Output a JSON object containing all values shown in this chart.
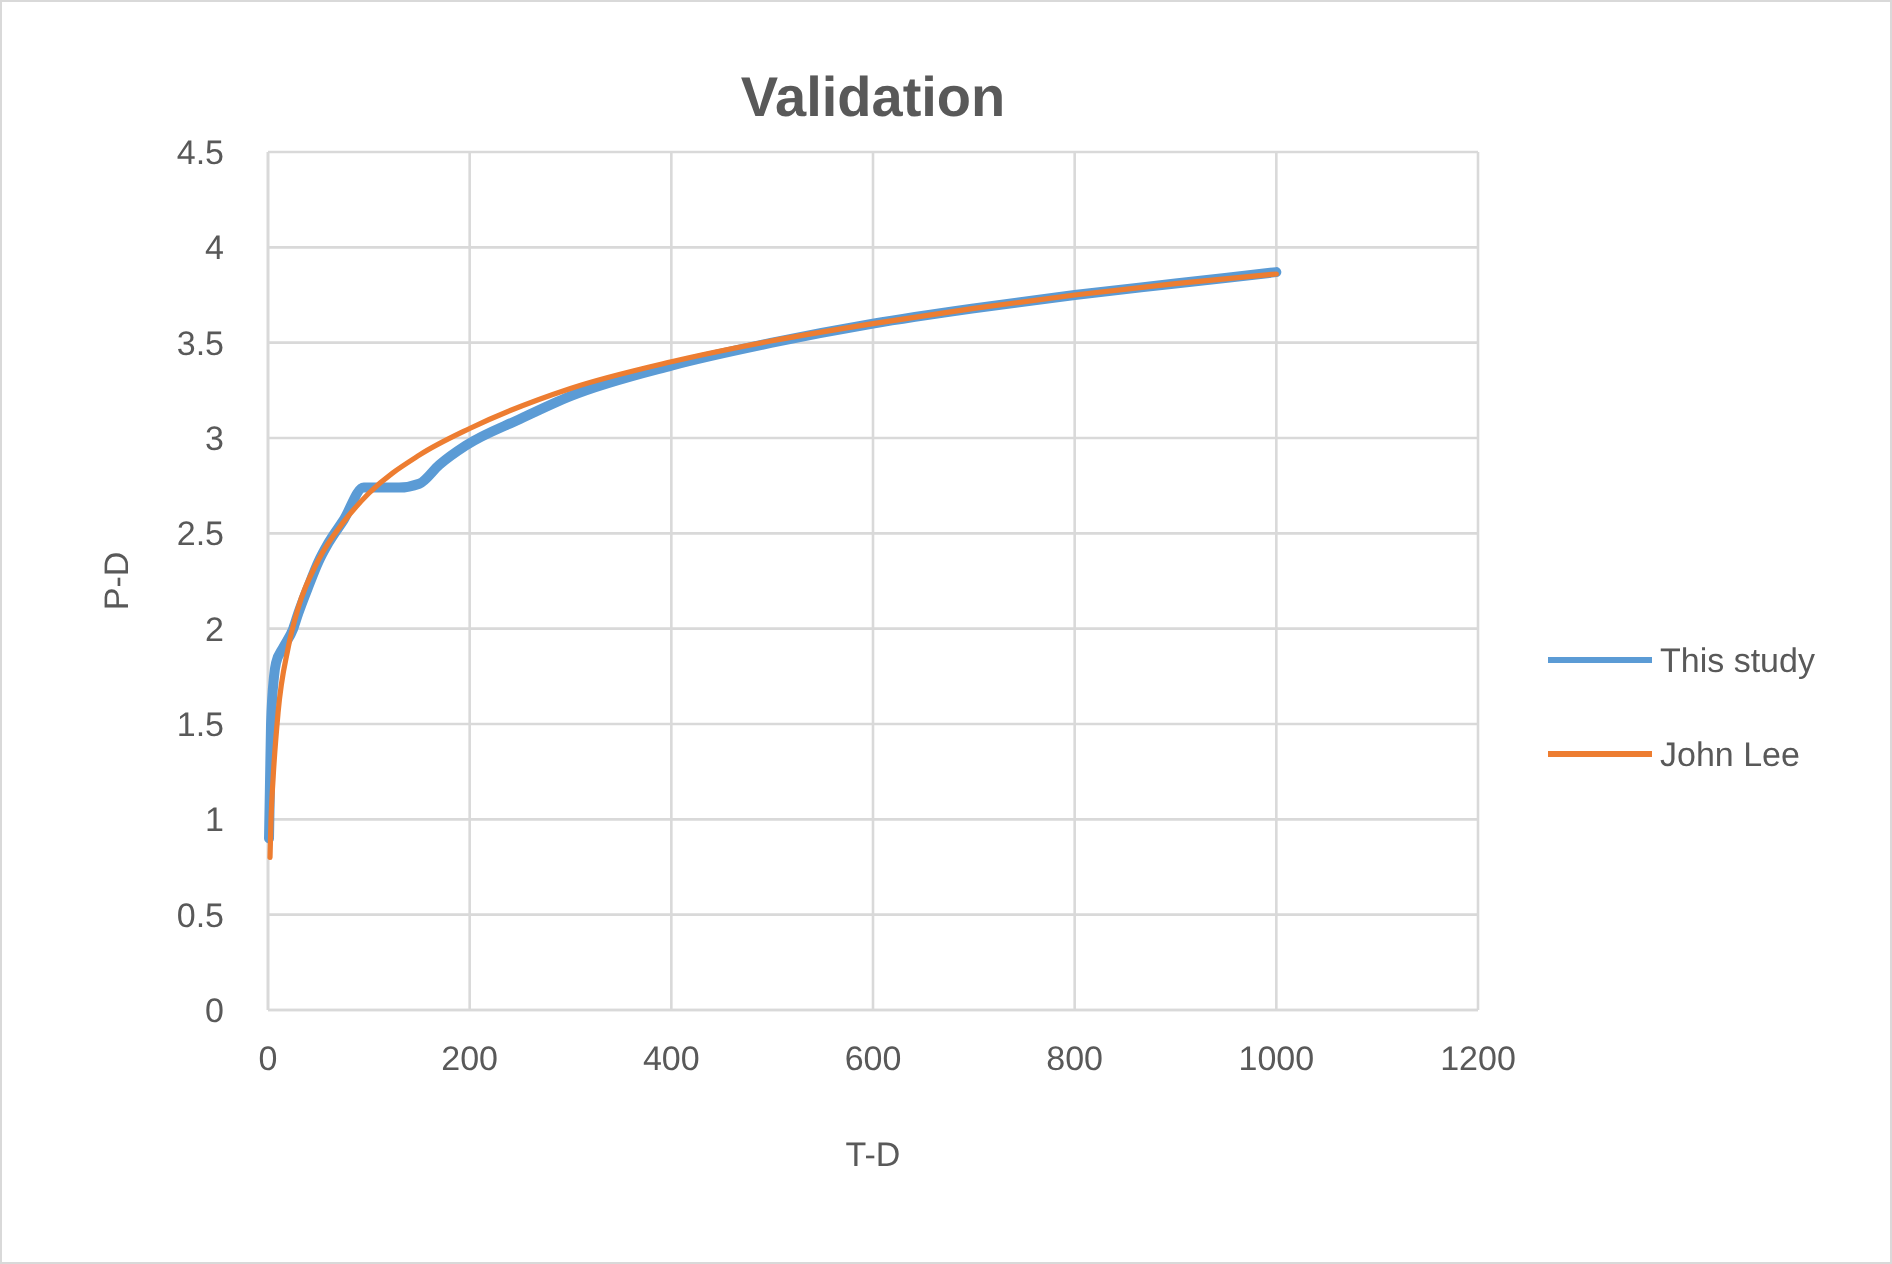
{
  "chart_data": {
    "type": "line",
    "title": "Validation",
    "xlabel": "T-D",
    "ylabel": "P-D",
    "xlim": [
      0,
      1200
    ],
    "xticks": [
      0,
      200,
      400,
      600,
      800,
      1000,
      1200
    ],
    "ylim": [
      0,
      4.5
    ],
    "yticks": [
      0,
      0.5,
      1,
      1.5,
      2,
      2.5,
      3,
      3.5,
      4,
      4.5
    ],
    "grid": true,
    "legend": "right",
    "marker": "none",
    "series": [
      {
        "name": "This study",
        "color": "#5b9bd5",
        "x": [
          1,
          3,
          6,
          8,
          15,
          25,
          30,
          40,
          50,
          60,
          75,
          95,
          110,
          130,
          150,
          170,
          196,
          250,
          300,
          400,
          500,
          600,
          700,
          800,
          900,
          1000
        ],
        "values": [
          0.9,
          1.5,
          1.75,
          1.82,
          1.9,
          2.0,
          2.08,
          2.22,
          2.35,
          2.45,
          2.57,
          2.74,
          2.74,
          2.74,
          2.76,
          2.86,
          2.96,
          3.1,
          3.22,
          3.38,
          3.5,
          3.6,
          3.68,
          3.75,
          3.81,
          3.87
        ]
      },
      {
        "name": "John Lee",
        "color": "#ed7d31",
        "x": [
          2,
          3,
          5,
          10,
          20,
          30,
          50,
          75,
          100,
          150,
          200,
          300,
          400,
          500,
          600,
          700,
          800,
          900,
          1000
        ],
        "values": [
          0.8,
          1.0,
          1.21,
          1.56,
          1.9,
          2.11,
          2.36,
          2.56,
          2.71,
          2.91,
          3.05,
          3.26,
          3.4,
          3.51,
          3.6,
          3.68,
          3.75,
          3.81,
          3.86
        ]
      }
    ]
  }
}
